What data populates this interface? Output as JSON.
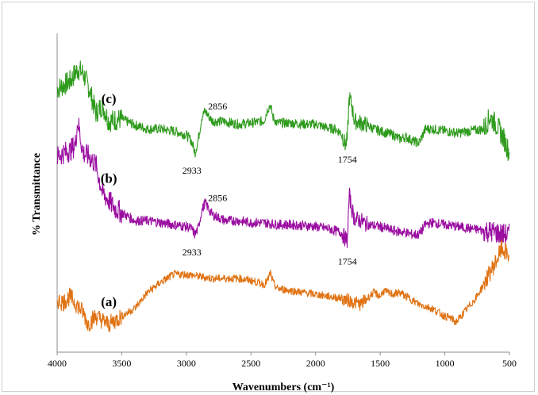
{
  "chart_data": {
    "type": "line",
    "title": "",
    "xlabel": "Wavenumbers (cm⁻¹)",
    "ylabel": "% Transmittance",
    "xlim": [
      4000,
      500
    ],
    "x_reversed": true,
    "xticks": [
      4000,
      3500,
      3000,
      2500,
      2000,
      1500,
      1000,
      500
    ],
    "y_tick_labels_shown": false,
    "grid": false,
    "legend": "none",
    "series": [
      {
        "name": "(c)",
        "color": "#2e9a1c",
        "x": [
          4000,
          3900,
          3840,
          3800,
          3750,
          3700,
          3650,
          3600,
          3500,
          3400,
          3300,
          3200,
          3100,
          3000,
          2960,
          2933,
          2910,
          2880,
          2856,
          2800,
          2700,
          2600,
          2500,
          2400,
          2370,
          2350,
          2330,
          2300,
          2200,
          2100,
          2000,
          1900,
          1850,
          1800,
          1770,
          1754,
          1740,
          1720,
          1700,
          1650,
          1600,
          1550,
          1500,
          1450,
          1400,
          1350,
          1300,
          1250,
          1200,
          1150,
          1100,
          1000,
          900,
          800,
          700,
          650,
          600,
          550,
          500
        ],
        "values": [
          6.6,
          6.8,
          7.1,
          7.0,
          6.6,
          6.0,
          6.2,
          5.8,
          5.85,
          5.7,
          5.6,
          5.6,
          5.55,
          5.45,
          5.3,
          5.0,
          5.3,
          5.9,
          6.05,
          5.8,
          5.78,
          5.72,
          5.75,
          5.8,
          6.1,
          6.2,
          5.9,
          5.75,
          5.75,
          5.72,
          5.72,
          5.62,
          5.6,
          5.5,
          5.2,
          5.35,
          6.4,
          6.2,
          5.8,
          5.75,
          5.7,
          5.6,
          5.55,
          5.5,
          5.45,
          5.35,
          5.4,
          5.3,
          5.25,
          5.6,
          5.6,
          5.55,
          5.5,
          5.55,
          5.6,
          5.9,
          5.7,
          5.4,
          5.0
        ],
        "line_annotations": [
          {
            "text": "2933",
            "x": 2933
          },
          {
            "text": "2856",
            "x": 2856
          },
          {
            "text": "1754",
            "x": 1754
          }
        ]
      },
      {
        "name": "(b)",
        "color": "#9a0da0",
        "x": [
          4000,
          3950,
          3900,
          3860,
          3840,
          3800,
          3750,
          3700,
          3650,
          3600,
          3550,
          3500,
          3400,
          3300,
          3200,
          3100,
          3000,
          2960,
          2933,
          2910,
          2880,
          2856,
          2800,
          2700,
          2600,
          2500,
          2400,
          2300,
          2200,
          2100,
          2000,
          1900,
          1850,
          1800,
          1770,
          1754,
          1740,
          1720,
          1700,
          1650,
          1600,
          1500,
          1400,
          1300,
          1250,
          1200,
          1150,
          1100,
          1000,
          900,
          800,
          700,
          600,
          550,
          500
        ],
        "values": [
          4.9,
          5.0,
          5.05,
          5.2,
          5.8,
          5.0,
          4.9,
          4.7,
          4.0,
          3.8,
          3.6,
          3.5,
          3.3,
          3.3,
          3.25,
          3.2,
          3.15,
          3.1,
          2.95,
          3.1,
          3.55,
          3.75,
          3.45,
          3.3,
          3.3,
          3.25,
          3.25,
          3.2,
          3.2,
          3.18,
          3.15,
          3.1,
          3.05,
          3.0,
          2.85,
          2.8,
          3.95,
          3.6,
          3.35,
          3.3,
          3.2,
          3.15,
          3.05,
          3.0,
          2.95,
          2.95,
          3.2,
          3.25,
          3.2,
          3.15,
          3.1,
          3.05,
          3.0,
          2.95,
          2.95
        ],
        "line_annotations": [
          {
            "text": "2933",
            "x": 2933
          },
          {
            "text": "2856",
            "x": 2856
          },
          {
            "text": "1754",
            "x": 1754
          }
        ]
      },
      {
        "name": "(a)",
        "color": "#e07212",
        "x": [
          4000,
          3950,
          3900,
          3850,
          3800,
          3760,
          3720,
          3700,
          3650,
          3600,
          3500,
          3400,
          3300,
          3200,
          3100,
          3000,
          2900,
          2800,
          2700,
          2600,
          2500,
          2400,
          2370,
          2350,
          2330,
          2300,
          2200,
          2100,
          2000,
          1900,
          1800,
          1700,
          1650,
          1600,
          1550,
          1500,
          1470,
          1450,
          1400,
          1350,
          1300,
          1250,
          1200,
          1150,
          1100,
          1050,
          1000,
          950,
          920,
          900,
          850,
          800,
          750,
          700,
          650,
          600,
          560,
          530,
          500
        ],
        "values": [
          1.3,
          1.25,
          1.4,
          1.2,
          1.0,
          0.7,
          0.85,
          0.9,
          0.8,
          0.7,
          0.9,
          1.1,
          1.5,
          1.75,
          1.95,
          1.95,
          1.9,
          1.85,
          1.85,
          1.85,
          1.8,
          1.7,
          1.8,
          2.0,
          1.75,
          1.6,
          1.55,
          1.5,
          1.45,
          1.4,
          1.35,
          1.25,
          1.2,
          1.35,
          1.5,
          1.4,
          1.55,
          1.5,
          1.45,
          1.5,
          1.4,
          1.3,
          1.2,
          1.15,
          1.1,
          1.0,
          0.9,
          0.85,
          0.75,
          0.8,
          1.0,
          1.2,
          1.4,
          1.7,
          2.0,
          2.3,
          2.6,
          2.5,
          2.4
        ]
      }
    ]
  }
}
